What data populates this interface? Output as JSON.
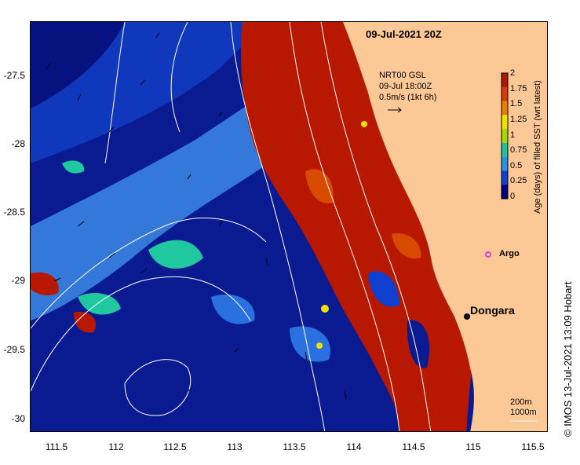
{
  "title": "09-Jul-2021 20Z",
  "current_legend": {
    "line1": "NRT00 GSL",
    "line2": "09-Jul 18:00Z",
    "line3": "0.5m/s (1kt 6h)"
  },
  "colorbar": {
    "title": "Age (days) of filled SST (wrt latest)",
    "ticks": [
      "2",
      "1.75",
      "1.5",
      "1.25",
      "1",
      "0.75",
      "0.5",
      "0.25",
      "0"
    ],
    "colors": [
      "#b01800",
      "#d83a00",
      "#e87e00",
      "#f0e000",
      "#a8d800",
      "#20c0a0",
      "#2890e8",
      "#1040d0",
      "#000080"
    ]
  },
  "axes": {
    "y_ticks": [
      "-27.5",
      "-28",
      "-28.5",
      "-29",
      "-29.5",
      "-30"
    ],
    "x_ticks": [
      "111.5",
      "112",
      "112.5",
      "113",
      "113.5",
      "114",
      "114.5",
      "115",
      "115.5"
    ],
    "lon_range": [
      111.3,
      115.65
    ],
    "lat_range": [
      -30.08,
      -27.07
    ]
  },
  "places": {
    "argo": "Argo",
    "dongara": "Dongara"
  },
  "scale": {
    "line1": "200m",
    "line2": "1000m"
  },
  "copyright": "©  IMOS 13-Jul-2021 13:09 Hobart",
  "colors": {
    "land": "#fcc896",
    "ocean_deep": "#0a1a90",
    "ocean_mid": "#1848d8",
    "warm": "#b81800",
    "teal": "#20c8a0",
    "argo": "#e040e0"
  }
}
